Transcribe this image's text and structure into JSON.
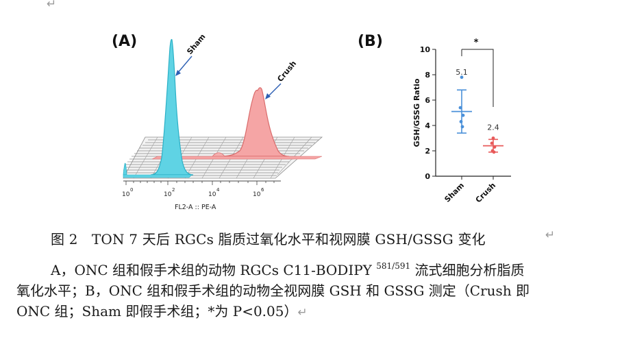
{
  "page": {
    "return_mark": "↵"
  },
  "figure": {
    "panel_a_label": "(A)",
    "panel_b_label": "(B)",
    "panel_a": {
      "xaxis_label": "FL2-A :: PE-A",
      "ticks": [
        {
          "base": "10",
          "exp": "0"
        },
        {
          "base": "10",
          "exp": "2"
        },
        {
          "base": "10",
          "exp": "4"
        },
        {
          "base": "10",
          "exp": "6"
        }
      ],
      "annotation_sham": "Sham",
      "annotation_crush": "Crush",
      "colors": {
        "sham": "#3cc8dc",
        "crush": "#f08080"
      }
    },
    "significance_mark": "*"
  },
  "chart_data": {
    "type": "scatter",
    "title": "",
    "xlabel": "",
    "ylabel": "GSH/GSSG Ratio",
    "ylim": [
      0,
      10
    ],
    "yticks": [
      "0",
      "2",
      "4",
      "6",
      "8",
      "10"
    ],
    "categories": [
      "Sham",
      "Crush"
    ],
    "series": [
      {
        "name": "Sham",
        "color": "#4a90d9",
        "mean": 5.1,
        "mean_label": "5.1",
        "sd": 1.7,
        "points": [
          7.8,
          5.4,
          4.8,
          4.3,
          3.9
        ]
      },
      {
        "name": "Crush",
        "color": "#e85a5a",
        "mean": 2.4,
        "mean_label": "2.4",
        "sd": 0.5,
        "points": [
          3.0,
          2.6,
          2.3,
          2.0,
          1.9
        ]
      }
    ],
    "significance": "*",
    "grid": false
  },
  "caption": {
    "title": "图 2　TON 7 天后 RGCs 脂质过氧化水平和视网膜 GSH/GSSG 变化",
    "line1_before_sup": "A，ONC 组和假手术组的动物 RGCs C11-BODIPY ",
    "line1_sup": "581/591",
    "line1_after_sup": " 流式细胞分析脂质",
    "line2": "氧化水平；B，ONC 组和假手术组的动物全视网膜 GSH 和 GSSG 测定（Crush 即",
    "line3": "ONC 组；Sham 即假手术组；*为 P<0.05）"
  }
}
